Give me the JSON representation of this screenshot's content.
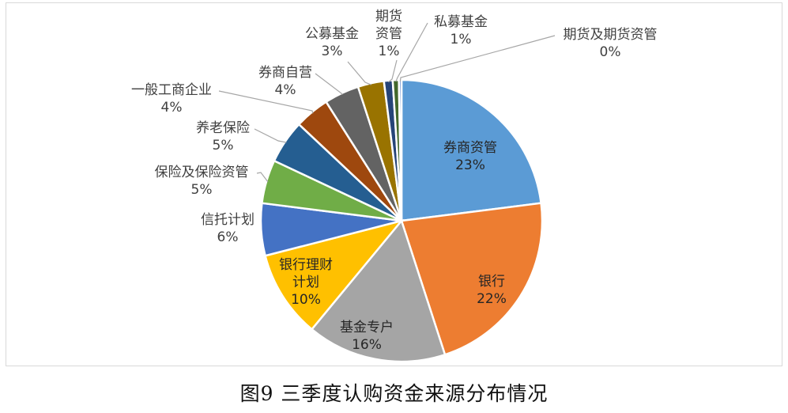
{
  "caption": "图9 三季度认购资金来源分布情况",
  "chart_data": {
    "type": "pie",
    "title": "",
    "slices": [
      {
        "label": "券商资管",
        "value": 23,
        "pct_text": "23%",
        "color": "#5B9BD5"
      },
      {
        "label": "银行",
        "value": 22,
        "pct_text": "22%",
        "color": "#ED7D31"
      },
      {
        "label": "基金专户",
        "value": 16,
        "pct_text": "16%",
        "color": "#A5A5A5"
      },
      {
        "label": "银行理财计划",
        "value": 10,
        "pct_text": "10%",
        "color": "#FFC000"
      },
      {
        "label": "信托计划",
        "value": 6,
        "pct_text": "6%",
        "color": "#4472C4"
      },
      {
        "label": "保险及保险资管",
        "value": 5,
        "pct_text": "5%",
        "color": "#70AD47"
      },
      {
        "label": "养老保险",
        "value": 5,
        "pct_text": "5%",
        "color": "#255E91"
      },
      {
        "label": "一般工商企业",
        "value": 4,
        "pct_text": "4%",
        "color": "#9E480E"
      },
      {
        "label": "券商自营",
        "value": 4,
        "pct_text": "4%",
        "color": "#636363"
      },
      {
        "label": "公募基金",
        "value": 3,
        "pct_text": "3%",
        "color": "#997300"
      },
      {
        "label": "期货资管",
        "value": 1,
        "pct_text": "1%",
        "color": "#264478"
      },
      {
        "label": "私募基金",
        "value": 0.7,
        "pct_text": "1%",
        "color": "#43682B"
      },
      {
        "label": "期货及期货资管",
        "value": 0.3,
        "pct_text": "0%",
        "color": "#698ED0"
      }
    ]
  }
}
